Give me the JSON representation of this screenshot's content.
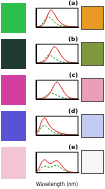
{
  "chart_data": [
    {
      "type": "line",
      "title": "(a)",
      "x": [
        400,
        425,
        450,
        475,
        500,
        525,
        550,
        575,
        600,
        625,
        650,
        675,
        700,
        725,
        750
      ],
      "series": [
        {
          "color": "#e03030",
          "line_style": "solid",
          "values": [
            0,
            0.02,
            0.08,
            0.3,
            0.75,
            1.0,
            0.8,
            0.5,
            0.28,
            0.14,
            0.07,
            0.03,
            0.01,
            0,
            0
          ]
        },
        {
          "color": "#30a030",
          "line_style": "dashed",
          "values": [
            0,
            0.03,
            0.15,
            0.45,
            0.6,
            0.5,
            0.32,
            0.18,
            0.09,
            0.04,
            0.02,
            0.01,
            0,
            0,
            0
          ]
        }
      ],
      "xlim": [
        400,
        750
      ],
      "ylim": [
        0,
        1.1
      ],
      "tick_labels": false,
      "grid": false
    },
    {
      "type": "line",
      "title": "(b)",
      "x": [
        400,
        425,
        450,
        475,
        500,
        525,
        550,
        575,
        600,
        625,
        650,
        675,
        700,
        725,
        750
      ],
      "series": [
        {
          "color": "#e03030",
          "line_style": "solid",
          "values": [
            0,
            0.01,
            0.04,
            0.12,
            0.35,
            0.7,
            0.95,
            0.85,
            0.55,
            0.3,
            0.14,
            0.06,
            0.02,
            0.01,
            0
          ]
        },
        {
          "color": "#30a030",
          "line_style": "dashed",
          "values": [
            0,
            0.02,
            0.08,
            0.25,
            0.45,
            0.42,
            0.3,
            0.18,
            0.1,
            0.05,
            0.02,
            0.01,
            0,
            0,
            0
          ]
        }
      ],
      "xlim": [
        400,
        750
      ],
      "ylim": [
        0,
        1.1
      ],
      "tick_labels": false,
      "grid": false
    },
    {
      "type": "line",
      "title": "(c)",
      "x": [
        400,
        425,
        450,
        475,
        500,
        525,
        550,
        575,
        600,
        625,
        650,
        675,
        700,
        725,
        750
      ],
      "series": [
        {
          "color": "#e03030",
          "line_style": "solid",
          "values": [
            0,
            0.01,
            0.03,
            0.08,
            0.2,
            0.45,
            0.8,
            1.0,
            0.8,
            0.5,
            0.25,
            0.1,
            0.04,
            0.01,
            0
          ]
        },
        {
          "color": "#30a030",
          "line_style": "dashed",
          "values": [
            0,
            0.01,
            0.05,
            0.15,
            0.3,
            0.35,
            0.3,
            0.22,
            0.14,
            0.08,
            0.04,
            0.02,
            0.01,
            0,
            0
          ]
        }
      ],
      "xlim": [
        400,
        750
      ],
      "ylim": [
        0,
        1.1
      ],
      "tick_labels": false,
      "grid": false
    },
    {
      "type": "line",
      "title": "(d)",
      "x": [
        400,
        425,
        450,
        475,
        500,
        525,
        550,
        575,
        600,
        625,
        650,
        675,
        700,
        725,
        750
      ],
      "series": [
        {
          "color": "#e03030",
          "line_style": "solid",
          "values": [
            0.05,
            0.35,
            0.85,
            1.0,
            0.7,
            0.45,
            0.3,
            0.2,
            0.12,
            0.07,
            0.04,
            0.02,
            0.01,
            0,
            0
          ]
        },
        {
          "color": "#30a030",
          "line_style": "dashed",
          "values": [
            0.02,
            0.2,
            0.5,
            0.55,
            0.4,
            0.25,
            0.15,
            0.08,
            0.04,
            0.02,
            0.01,
            0,
            0,
            0,
            0
          ]
        }
      ],
      "xlim": [
        400,
        750
      ],
      "ylim": [
        0,
        1.1
      ],
      "tick_labels": false,
      "grid": false
    },
    {
      "type": "line",
      "title": "(e)",
      "xlabel": "Wavelength (nm)",
      "x": [
        400,
        425,
        450,
        475,
        500,
        525,
        550,
        575,
        600,
        625,
        650,
        675,
        700,
        725,
        750
      ],
      "series": [
        {
          "color": "#e03030",
          "line_style": "solid",
          "values": [
            0.03,
            0.25,
            0.6,
            0.7,
            0.55,
            0.5,
            0.6,
            0.65,
            0.5,
            0.3,
            0.15,
            0.07,
            0.03,
            0.01,
            0
          ]
        },
        {
          "color": "#30a030",
          "line_style": "dashed",
          "values": [
            0.01,
            0.1,
            0.3,
            0.35,
            0.3,
            0.3,
            0.38,
            0.4,
            0.3,
            0.18,
            0.09,
            0.04,
            0.01,
            0,
            0
          ]
        }
      ],
      "xlim": [
        400,
        750
      ],
      "ylim": [
        0,
        1.1
      ],
      "tick_labels": false,
      "grid": false
    }
  ]
}
